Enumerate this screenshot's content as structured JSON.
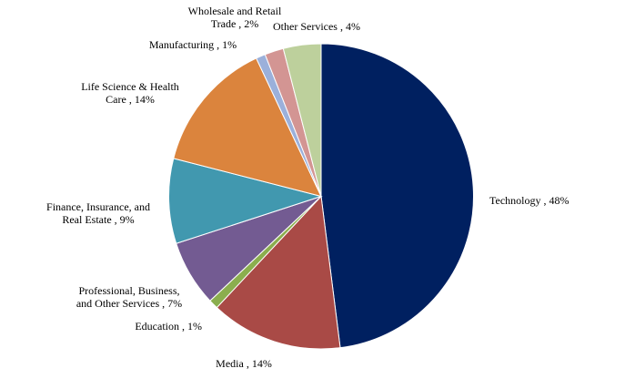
{
  "chart_data": {
    "type": "pie",
    "title": "",
    "start": "top, clockwise",
    "legend": "none (data labels outside slices)",
    "label_format": "{name} , {value}%",
    "slices": [
      {
        "name": "Technology",
        "value": 48,
        "color": "#002060"
      },
      {
        "name": "Media",
        "value": 14,
        "color": "#A94A46"
      },
      {
        "name": "Education",
        "value": 1,
        "color": "#8BAE4E"
      },
      {
        "name": "Professional, Business, and Other Services",
        "value": 7,
        "color": "#735B92"
      },
      {
        "name": "Finance, Insurance, and Real Estate",
        "value": 9,
        "color": "#4198AF"
      },
      {
        "name": "Life Science & Health Care",
        "value": 14,
        "color": "#DB843D"
      },
      {
        "name": "Manufacturing",
        "value": 1,
        "color": "#9BB0DA"
      },
      {
        "name": "Wholesale and Retail Trade",
        "value": 2,
        "color": "#D39593"
      },
      {
        "name": "Other Services",
        "value": 4,
        "color": "#BDD09C"
      }
    ]
  }
}
